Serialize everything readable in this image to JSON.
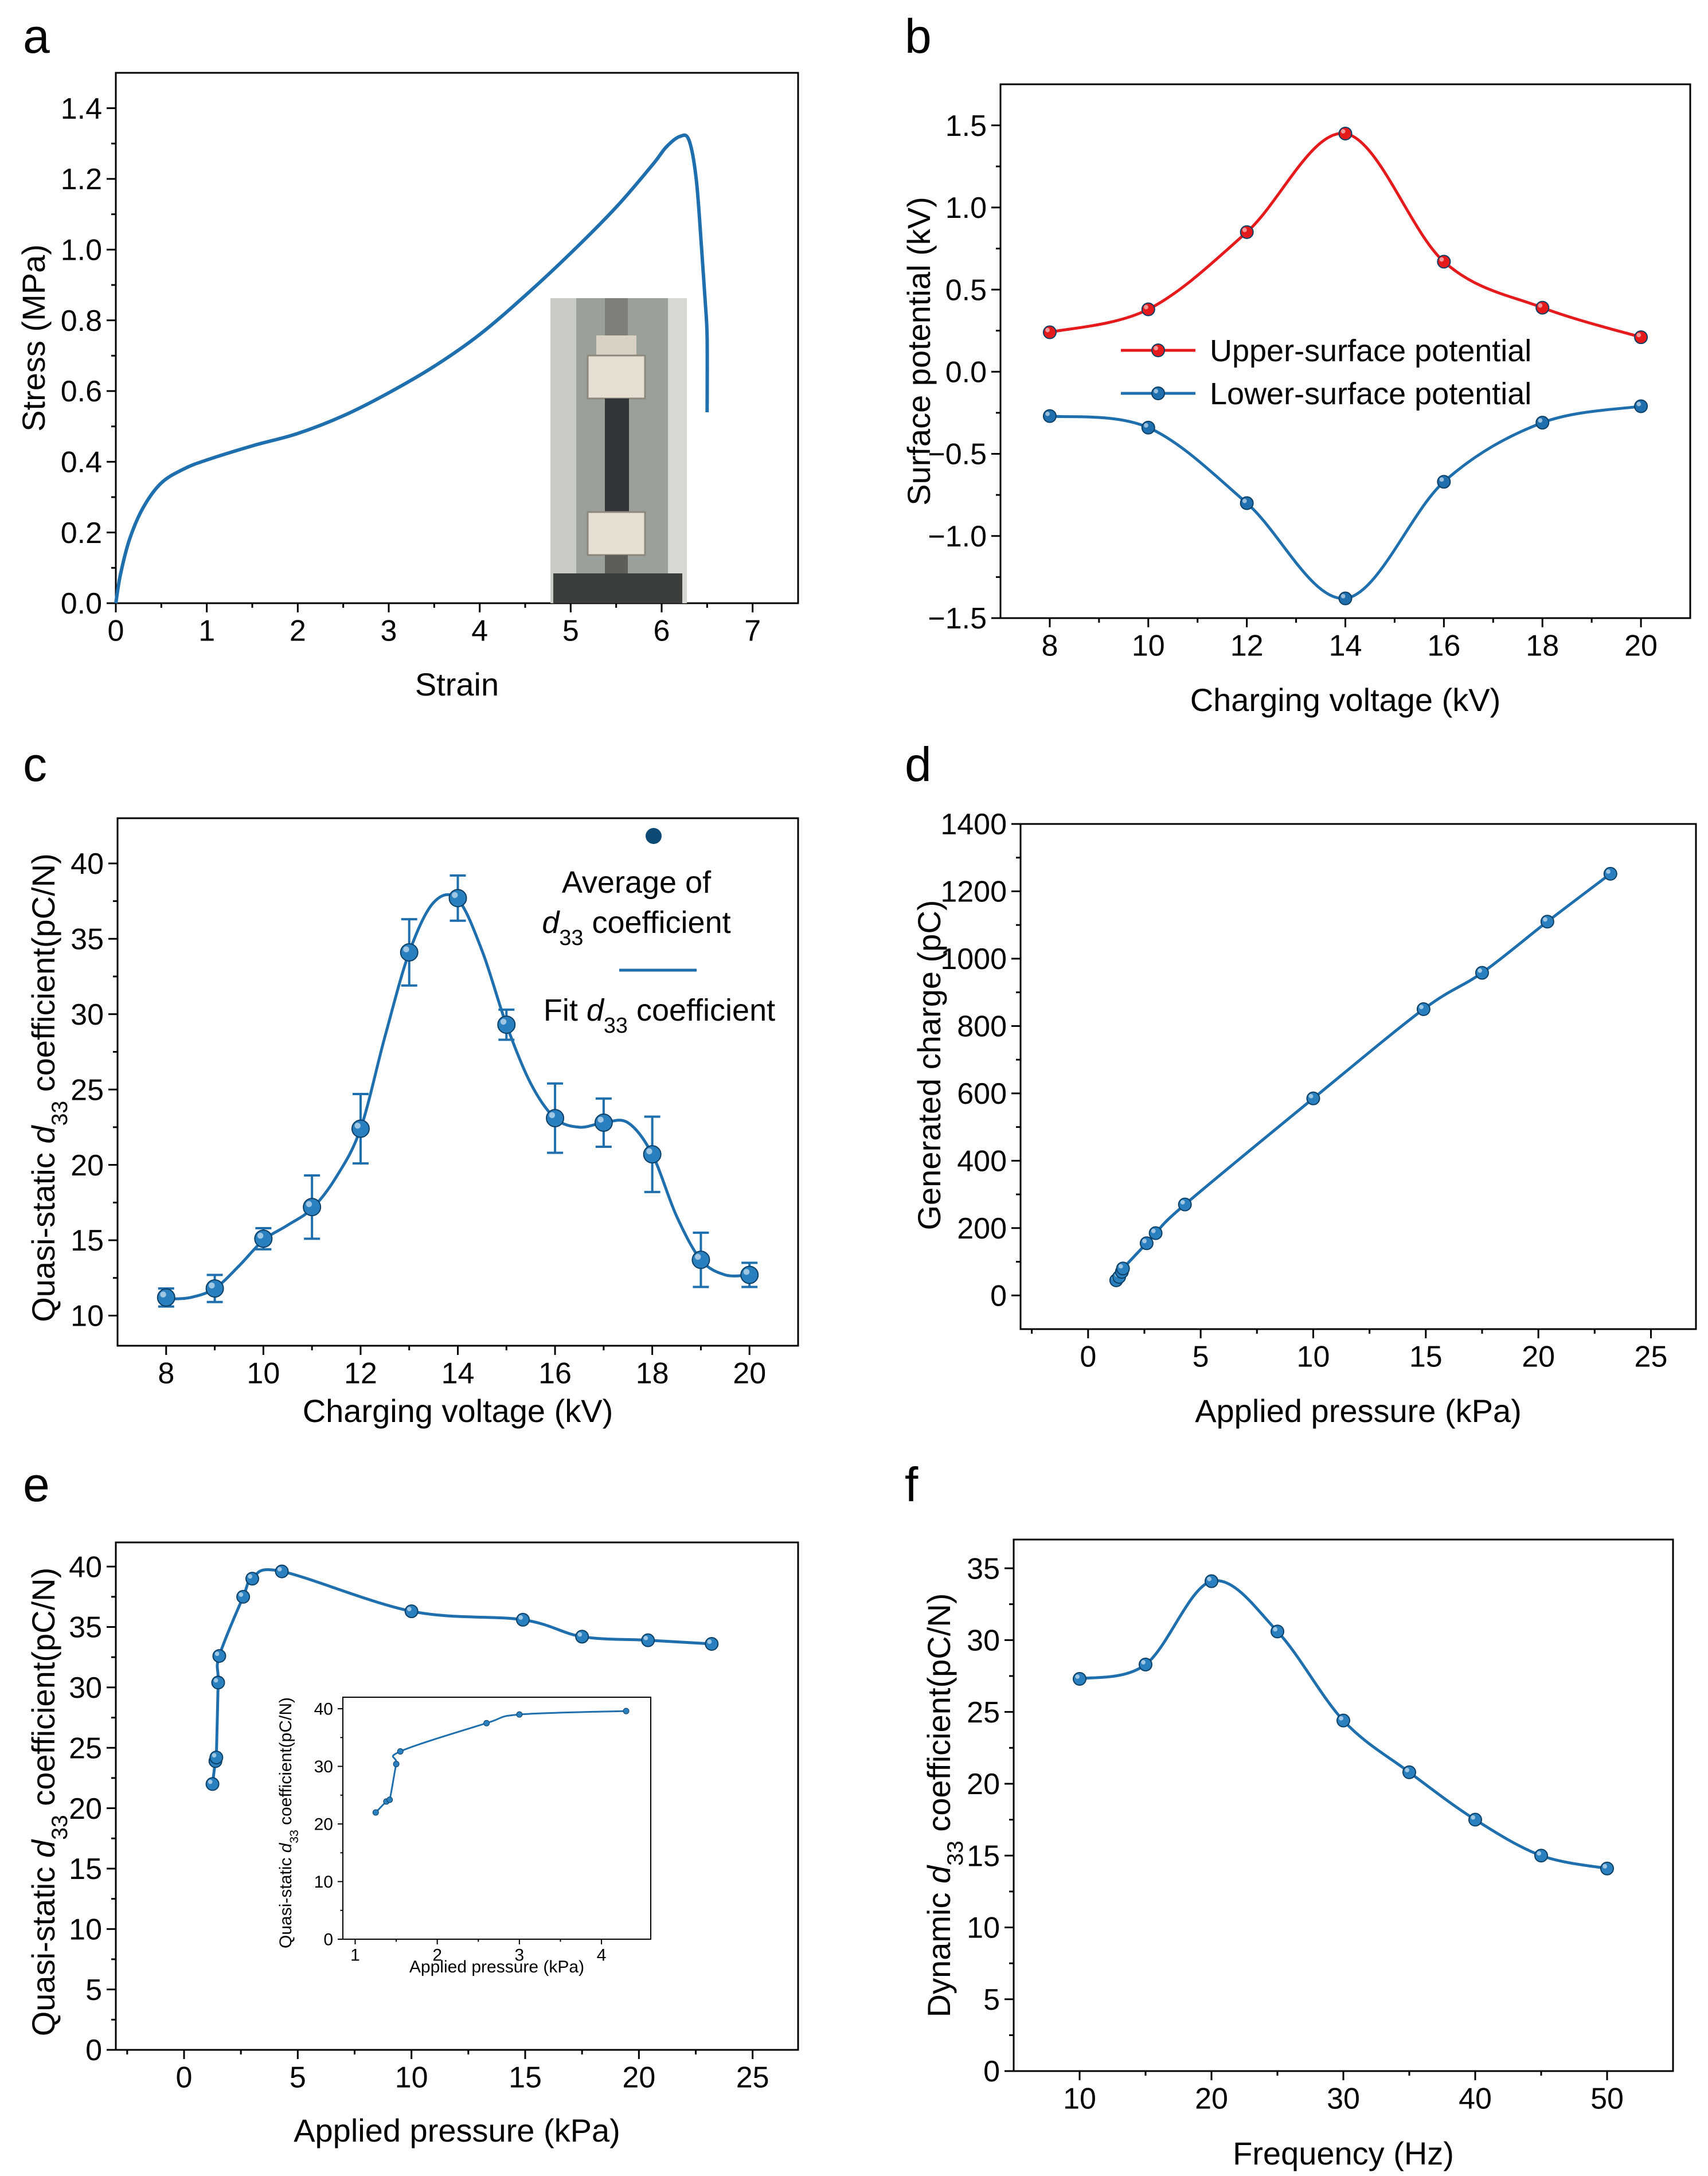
{
  "colors": {
    "blue": "#1f6fae",
    "blue_marker": "#2a80bf",
    "red": "#e41a1c",
    "dark_marker": "#0d4a75",
    "axis": "#000000"
  },
  "chart_data": [
    {
      "panel": "a",
      "type": "line",
      "xlabel": "Strain",
      "ylabel": "Stress (MPa)",
      "xlim": [
        0,
        7.5
      ],
      "ylim": [
        0,
        1.5
      ],
      "xticks": [
        0,
        1,
        2,
        3,
        4,
        5,
        6,
        7
      ],
      "yticks": [
        0.0,
        0.2,
        0.4,
        0.6,
        0.8,
        1.0,
        1.2,
        1.4
      ],
      "ytick_labels": [
        "0.0",
        "0.2",
        "0.4",
        "0.6",
        "0.8",
        "1.0",
        "1.2",
        "1.4"
      ],
      "inset": "photo of tensile test specimen mounted in grips",
      "series": [
        {
          "name": "stress-strain",
          "color": "#1f6fae",
          "x": [
            0,
            0.05,
            0.15,
            0.3,
            0.5,
            0.75,
            1.0,
            1.5,
            2.0,
            2.5,
            3.0,
            3.5,
            4.0,
            4.5,
            5.0,
            5.5,
            5.9,
            6.05,
            6.2,
            6.3,
            6.38,
            6.44,
            6.48,
            6.5,
            6.5
          ],
          "y": [
            0.0,
            0.08,
            0.18,
            0.27,
            0.34,
            0.38,
            0.405,
            0.445,
            0.48,
            0.53,
            0.595,
            0.67,
            0.76,
            0.87,
            0.99,
            1.12,
            1.24,
            1.29,
            1.32,
            1.31,
            1.2,
            1.0,
            0.85,
            0.75,
            0.54
          ]
        }
      ]
    },
    {
      "panel": "b",
      "type": "line",
      "xlabel": "Charging voltage (kV)",
      "ylabel": "Surface potential (kV)",
      "xlim": [
        7,
        21
      ],
      "ylim": [
        -1.5,
        1.75
      ],
      "xticks": [
        8,
        10,
        12,
        14,
        16,
        18,
        20
      ],
      "yticks": [
        -1.5,
        -1.0,
        -0.5,
        0.0,
        0.5,
        1.0,
        1.5
      ],
      "ytick_labels": [
        "−1.5",
        "−1.0",
        "−0.5",
        "0.0",
        "0.5",
        "1.0",
        "1.5"
      ],
      "legend": [
        "Upper-surface potential",
        "Lower-surface potential"
      ],
      "series": [
        {
          "name": "Upper-surface potential",
          "color": "#e41a1c",
          "x": [
            8,
            10,
            12,
            14,
            16,
            18,
            20
          ],
          "y": [
            0.24,
            0.38,
            0.85,
            1.45,
            0.67,
            0.39,
            0.21
          ]
        },
        {
          "name": "Lower-surface potential",
          "color": "#1f6fae",
          "x": [
            8,
            10,
            12,
            14,
            16,
            18,
            20
          ],
          "y": [
            -0.27,
            -0.34,
            -0.8,
            -1.38,
            -0.67,
            -0.31,
            -0.21
          ]
        }
      ]
    },
    {
      "panel": "c",
      "type": "line",
      "xlabel": "Charging voltage (kV)",
      "ylabel_prefix": "Quasi-static ",
      "ylabel_sym": "d",
      "ylabel_sub": "33",
      "ylabel_suffix": " coefficient(pC/N)",
      "xlim": [
        7,
        21
      ],
      "ylim": [
        8,
        43
      ],
      "xticks": [
        8,
        10,
        12,
        14,
        16,
        18,
        20
      ],
      "yticks": [
        10,
        15,
        20,
        25,
        30,
        35,
        40
      ],
      "legend_avg_line1": "Average of",
      "legend_avg_sym": "d",
      "legend_avg_sub": "33",
      "legend_avg_suffix": " coefficient",
      "legend_fit_prefix": "Fit ",
      "legend_fit_sym": "d",
      "legend_fit_sub": "33",
      "legend_fit_suffix": " coefficient",
      "series": [
        {
          "name": "Average of d33 coefficient",
          "color": "#1f6fae",
          "x": [
            8,
            9,
            10,
            11,
            12,
            13,
            14,
            15,
            16,
            17,
            18,
            19,
            20
          ],
          "y": [
            11.2,
            11.8,
            15.1,
            17.2,
            22.4,
            34.1,
            37.7,
            29.3,
            23.1,
            22.8,
            20.7,
            13.7,
            12.7
          ],
          "err": [
            0.6,
            0.9,
            0.7,
            2.1,
            2.3,
            2.2,
            1.5,
            1.0,
            2.3,
            1.6,
            2.5,
            1.8,
            0.8
          ]
        }
      ],
      "fit": {
        "x": [
          8,
          8.5,
          9,
          9.5,
          10,
          10.5,
          11,
          11.5,
          12,
          12.5,
          13,
          13.5,
          14,
          14.5,
          15,
          15.5,
          16,
          16.5,
          17,
          17.5,
          18,
          18.5,
          19,
          19.5,
          20
        ],
        "y": [
          11.1,
          11.2,
          11.8,
          13.3,
          15.0,
          16.0,
          17.1,
          19.2,
          22.4,
          28.5,
          34.1,
          37.4,
          37.6,
          34.2,
          29.3,
          25.4,
          23.1,
          22.5,
          22.8,
          22.8,
          20.7,
          16.6,
          13.7,
          12.7,
          12.7
        ]
      }
    },
    {
      "panel": "d",
      "type": "line",
      "xlabel": "Applied pressure (kPa)",
      "ylabel": "Generated charge (pC)",
      "xlim": [
        -3,
        27
      ],
      "ylim": [
        -100,
        1400
      ],
      "xticks": [
        0,
        5,
        10,
        15,
        20,
        25
      ],
      "yticks": [
        0,
        200,
        400,
        600,
        800,
        1000,
        1200,
        1400
      ],
      "series": [
        {
          "name": "generated charge",
          "color": "#1f6fae",
          "x": [
            1.25,
            1.38,
            1.5,
            1.55,
            2.6,
            3.0,
            4.3,
            10.0,
            14.9,
            17.5,
            20.4,
            23.2
          ],
          "y": [
            45,
            55,
            70,
            80,
            155,
            185,
            270,
            585,
            850,
            958,
            1110,
            1252
          ]
        }
      ]
    },
    {
      "panel": "e",
      "type": "line",
      "xlabel": "Applied pressure (kPa)",
      "ylabel_prefix": "Quasi-static ",
      "ylabel_sym": "d",
      "ylabel_sub": "33",
      "ylabel_suffix": " coefficient(pC/N)",
      "xlim": [
        -3,
        27
      ],
      "ylim": [
        0,
        42
      ],
      "xticks": [
        0,
        5,
        10,
        15,
        20,
        25
      ],
      "yticks": [
        0,
        5,
        10,
        15,
        20,
        25,
        30,
        35,
        40
      ],
      "series": [
        {
          "name": "quasi-static d33",
          "color": "#1f6fae",
          "x": [
            1.25,
            1.38,
            1.42,
            1.5,
            1.55,
            2.6,
            3.0,
            4.3,
            10.0,
            14.9,
            17.5,
            20.4,
            23.2
          ],
          "y": [
            22.0,
            23.9,
            24.2,
            30.4,
            32.6,
            37.5,
            39.0,
            39.6,
            36.3,
            35.6,
            34.2,
            33.9,
            33.6
          ]
        }
      ],
      "inset": {
        "xlabel": "Applied pressure (kPa)",
        "ylabel_prefix": "Quasi-static ",
        "ylabel_sym": "d",
        "ylabel_sub": "33",
        "ylabel_suffix": " coefficient(pC/N)",
        "xlim": [
          0.85,
          4.6
        ],
        "ylim": [
          0,
          42
        ],
        "xticks": [
          1,
          2,
          3,
          4
        ],
        "yticks": [
          0,
          10,
          20,
          30,
          40
        ],
        "x": [
          1.25,
          1.38,
          1.42,
          1.5,
          1.55,
          2.6,
          3.0,
          4.3
        ],
        "y": [
          22.0,
          23.9,
          24.2,
          30.4,
          32.6,
          37.5,
          39.0,
          39.6
        ]
      }
    },
    {
      "panel": "f",
      "type": "line",
      "xlabel": "Frequency (Hz)",
      "ylabel_prefix": "Dynamic ",
      "ylabel_sym": "d",
      "ylabel_sub": "33",
      "ylabel_suffix": " coefficient(pC/N)",
      "xlim": [
        5,
        55
      ],
      "ylim": [
        0,
        37
      ],
      "xticks": [
        10,
        20,
        30,
        40,
        50
      ],
      "yticks": [
        0,
        5,
        10,
        15,
        20,
        25,
        30,
        35
      ],
      "series": [
        {
          "name": "dynamic d33",
          "color": "#1f6fae",
          "x": [
            10,
            15,
            20,
            25,
            30,
            35,
            40,
            45,
            50
          ],
          "y": [
            27.3,
            28.3,
            34.1,
            30.6,
            24.4,
            20.8,
            17.5,
            15.0,
            14.1
          ]
        }
      ]
    }
  ],
  "panels": {
    "a": {
      "label": "a"
    },
    "b": {
      "label": "b"
    },
    "c": {
      "label": "c"
    },
    "d": {
      "label": "d"
    },
    "e": {
      "label": "e"
    },
    "f": {
      "label": "f"
    }
  }
}
